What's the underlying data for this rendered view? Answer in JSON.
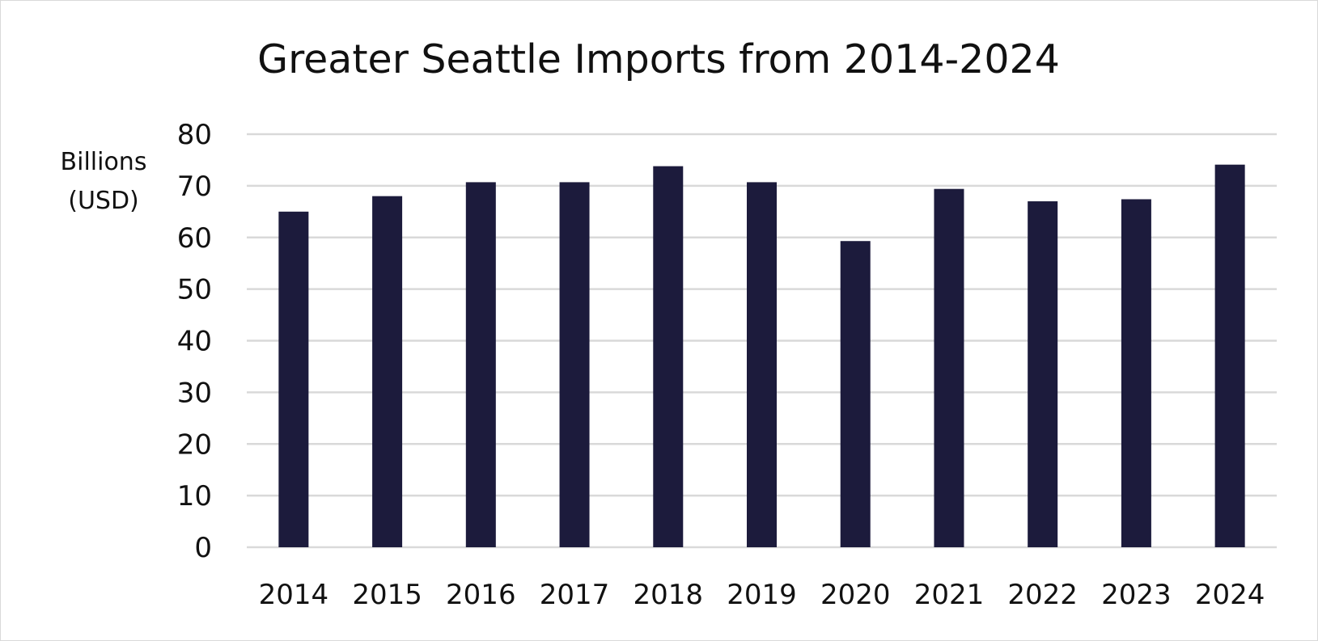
{
  "chart_data": {
    "type": "bar",
    "title": "Greater Seattle Imports from 2014-2024",
    "ylabel_lines": [
      "Billions",
      "(USD)"
    ],
    "xlabel": "",
    "categories": [
      "2014",
      "2015",
      "2016",
      "2017",
      "2018",
      "2019",
      "2020",
      "2021",
      "2022",
      "2023",
      "2024"
    ],
    "values": [
      65,
      68,
      70.7,
      70.7,
      73.8,
      70.7,
      59.3,
      69.4,
      67,
      67.4,
      74.1
    ],
    "ylim": [
      0,
      80
    ],
    "yticks": [
      0,
      10,
      20,
      30,
      40,
      50,
      60,
      70,
      80
    ],
    "grid": true,
    "legend": "none",
    "bar_color": "#1c1b3c",
    "grid_color": "#d9d9d9"
  }
}
